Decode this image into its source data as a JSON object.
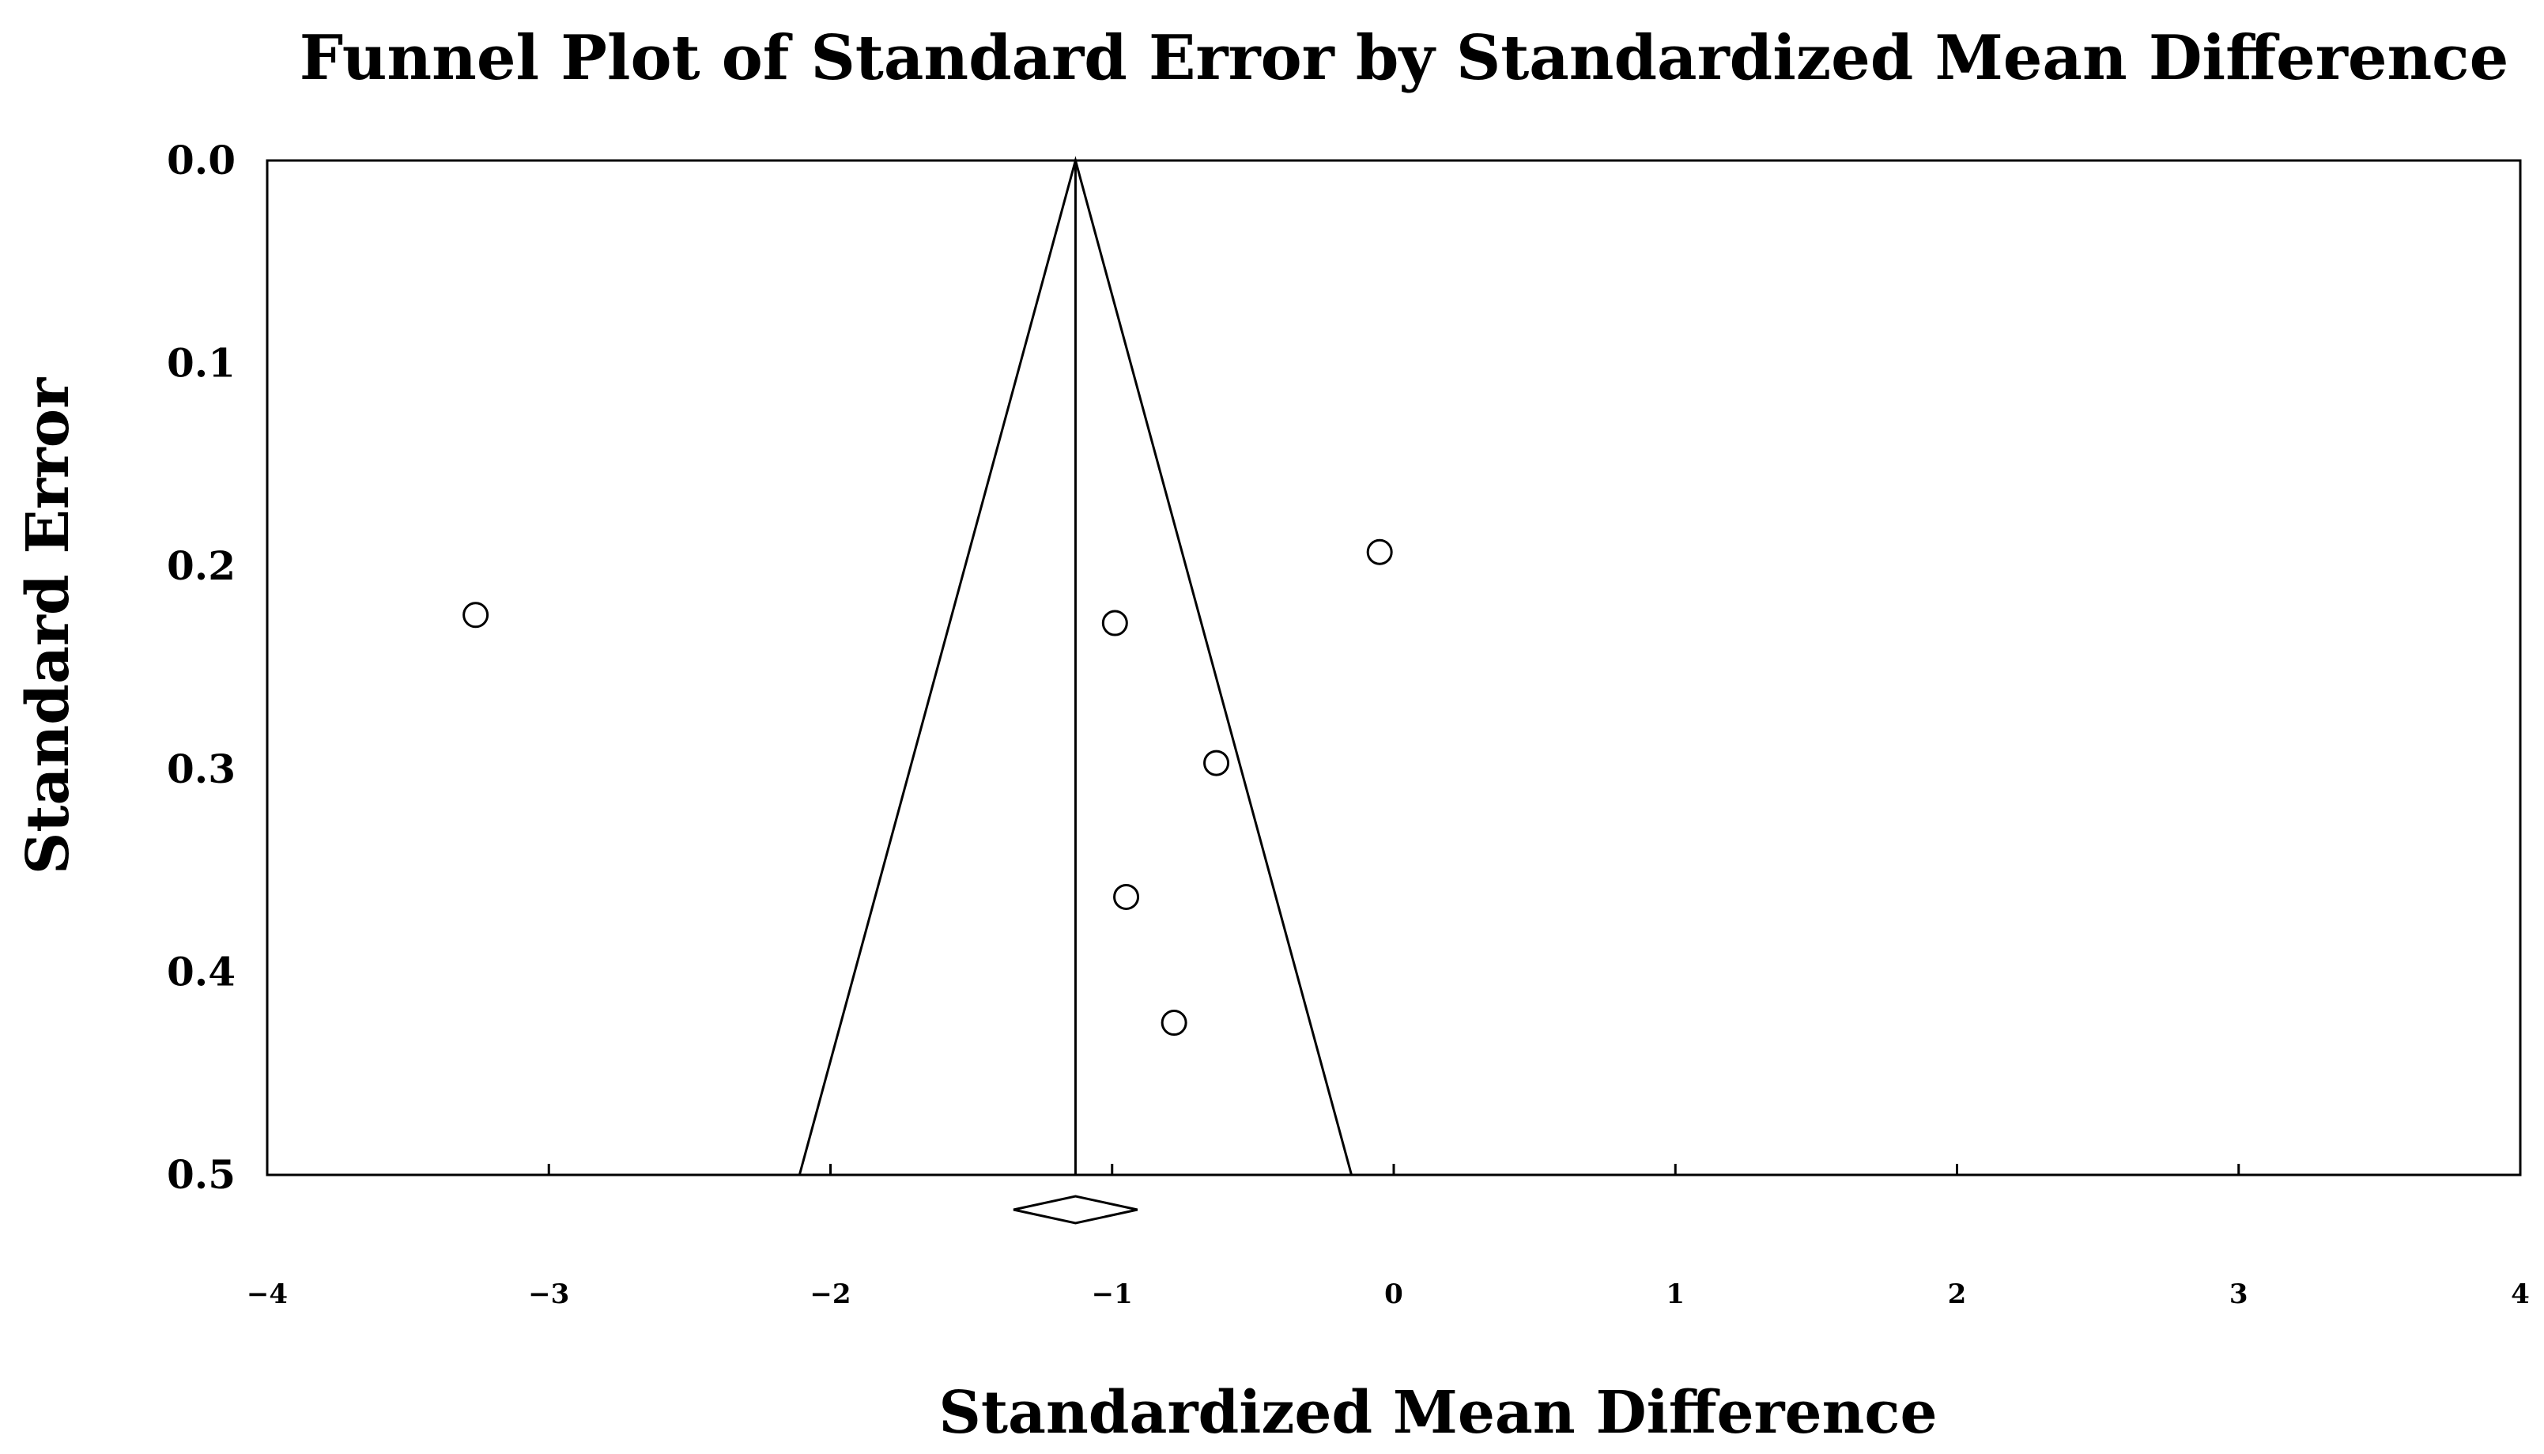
{
  "chart_data": {
    "type": "scatter",
    "title": "Funnel Plot of Standard Error by Standardized Mean Difference",
    "xlabel": "Standardized Mean Difference",
    "ylabel": "Standard Error",
    "xlim": [
      -4,
      4
    ],
    "ylim": [
      0.5,
      0.0
    ],
    "y_inverted": true,
    "xticks": [
      -4,
      -3,
      -2,
      -1,
      0,
      1,
      2,
      3,
      4
    ],
    "xtick_labels": [
      "−4",
      "−3",
      "−2",
      "−1",
      "0",
      "1",
      "2",
      "3",
      "4"
    ],
    "yticks": [
      0.0,
      0.1,
      0.2,
      0.3,
      0.4,
      0.5
    ],
    "ytick_labels": [
      "0.0",
      "0.1",
      "0.2",
      "0.3",
      "0.4",
      "0.5"
    ],
    "grid": false,
    "pooled_effect": -1.13,
    "funnel": {
      "apex": [
        -1.13,
        0.0
      ],
      "base_left": [
        -2.11,
        0.5
      ],
      "base_right": [
        -0.15,
        0.5
      ]
    },
    "summary_diamond": {
      "center": -1.13,
      "lower": -1.35,
      "upper": -0.91
    },
    "points": [
      {
        "x": -3.26,
        "y": 0.224
      },
      {
        "x": -0.05,
        "y": 0.193
      },
      {
        "x": -0.99,
        "y": 0.228
      },
      {
        "x": -0.63,
        "y": 0.297
      },
      {
        "x": -0.95,
        "y": 0.363
      },
      {
        "x": -0.78,
        "y": 0.425
      }
    ]
  }
}
